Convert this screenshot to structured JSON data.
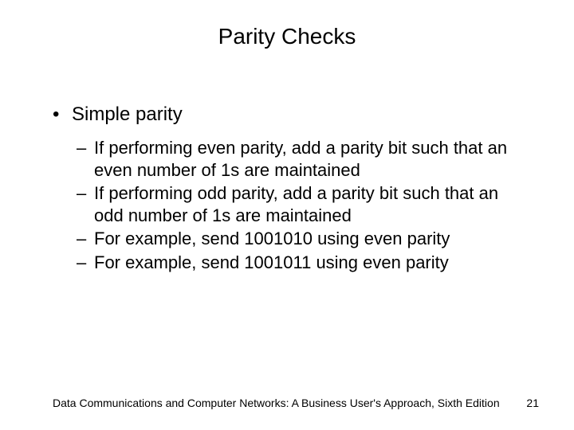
{
  "title": "Parity Checks",
  "bullets": {
    "lvl1": "Simple parity",
    "lvl2": [
      "If performing even parity, add a parity bit such that an even number of 1s are maintained",
      "If performing odd parity, add a parity bit such that an odd number of 1s are maintained",
      "For example, send 1001010 using even parity",
      "For example, send 1001011 using even parity"
    ]
  },
  "footer": "Data Communications and Computer Networks: A Business User's Approach, Sixth Edition",
  "page_number": "21",
  "styling": {
    "background_color": "#ffffff",
    "text_color": "#000000",
    "font_family": "Arial",
    "title_fontsize": 28,
    "lvl1_fontsize": 24,
    "lvl2_fontsize": 22,
    "footer_fontsize": 14,
    "slide_width": 720,
    "slide_height": 540,
    "bullet_char": "•",
    "dash_char": "–"
  }
}
